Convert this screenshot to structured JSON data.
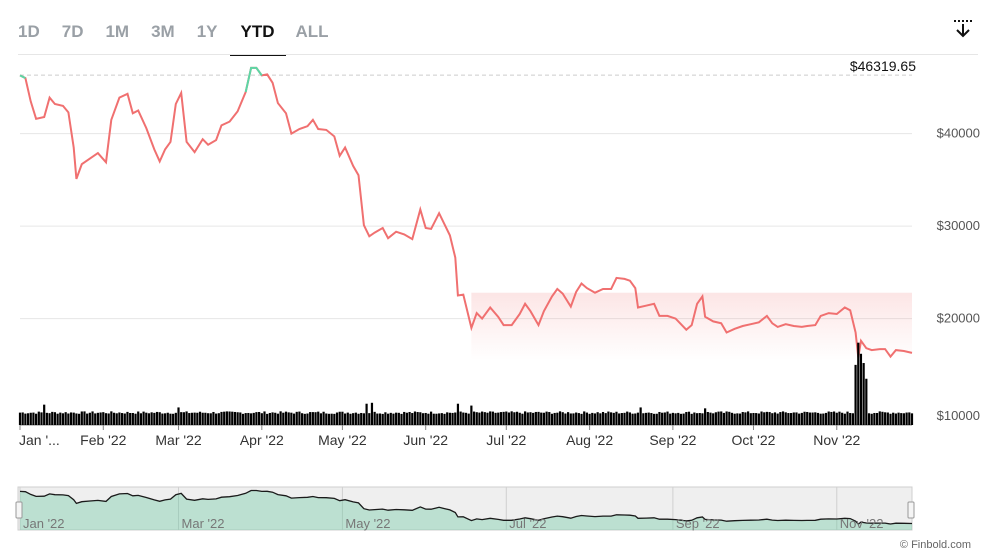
{
  "toolbar": {
    "tabs": [
      {
        "label": "1D"
      },
      {
        "label": "7D"
      },
      {
        "label": "1M"
      },
      {
        "label": "3M"
      },
      {
        "label": "1Y"
      },
      {
        "label": "YTD"
      },
      {
        "label": "ALL"
      }
    ],
    "active_tab": "YTD",
    "download_icon": "download-arrow-icon"
  },
  "credit": "© Finbold.com",
  "colors": {
    "line_down": "#f07070",
    "line_up": "#5dd6a5",
    "volume": "#000000",
    "navigator_line": "#1a1a1a",
    "navigator_fill": "#5fc79c"
  },
  "chart_data": {
    "type": "line",
    "title": "",
    "xlabel": "",
    "ylabel": "",
    "ylim": [
      8500,
      48500
    ],
    "yticks": [
      10000,
      20000,
      30000,
      40000
    ],
    "ytick_labels": [
      "$10000",
      "$20000",
      "$30000",
      "$40000"
    ],
    "xticks": [
      "2022-01-01",
      "2022-02-01",
      "2022-03-01",
      "2022-04-01",
      "2022-05-01",
      "2022-06-01",
      "2022-07-01",
      "2022-08-01",
      "2022-09-01",
      "2022-10-01",
      "2022-11-01"
    ],
    "xtick_labels": [
      "Jan '...",
      "Feb '22",
      "Mar '22",
      "Apr '22",
      "May '22",
      "Jun '22",
      "Jul '22",
      "Aug '22",
      "Sep '22",
      "Oct '22",
      "Nov '22"
    ],
    "x_range": [
      "2022-01-01",
      "2022-11-29"
    ],
    "grid": true,
    "max_annotation": {
      "label": "$46319.65",
      "value": 46319.65
    },
    "series": [
      {
        "points": [
          [
            "2022-01-01",
            46300
          ],
          [
            "2022-01-03",
            46000
          ],
          [
            "2022-01-05",
            43500
          ],
          [
            "2022-01-07",
            41600
          ],
          [
            "2022-01-10",
            41800
          ],
          [
            "2022-01-12",
            43900
          ],
          [
            "2022-01-14",
            43200
          ],
          [
            "2022-01-17",
            43000
          ],
          [
            "2022-01-19",
            42300
          ],
          [
            "2022-01-21",
            38500
          ],
          [
            "2022-01-22",
            35100
          ],
          [
            "2022-01-24",
            36700
          ],
          [
            "2022-01-27",
            37300
          ],
          [
            "2022-01-30",
            37900
          ],
          [
            "2022-02-02",
            36900
          ],
          [
            "2022-02-04",
            41500
          ],
          [
            "2022-02-07",
            43900
          ],
          [
            "2022-02-10",
            44300
          ],
          [
            "2022-02-12",
            42200
          ],
          [
            "2022-02-14",
            42500
          ],
          [
            "2022-02-17",
            40600
          ],
          [
            "2022-02-20",
            38300
          ],
          [
            "2022-02-22",
            37000
          ],
          [
            "2022-02-24",
            38300
          ],
          [
            "2022-02-26",
            39100
          ],
          [
            "2022-02-28",
            43200
          ],
          [
            "2022-03-02",
            44400
          ],
          [
            "2022-03-04",
            39100
          ],
          [
            "2022-03-07",
            38000
          ],
          [
            "2022-03-10",
            39400
          ],
          [
            "2022-03-12",
            38800
          ],
          [
            "2022-03-15",
            39300
          ],
          [
            "2022-03-17",
            40900
          ],
          [
            "2022-03-20",
            41300
          ],
          [
            "2022-03-23",
            42400
          ],
          [
            "2022-03-26",
            44500
          ],
          [
            "2022-03-28",
            47100
          ],
          [
            "2022-03-30",
            47100
          ],
          [
            "2022-04-01",
            46300
          ],
          [
            "2022-04-03",
            46400
          ],
          [
            "2022-04-05",
            45500
          ],
          [
            "2022-04-07",
            43300
          ],
          [
            "2022-04-10",
            42200
          ],
          [
            "2022-04-12",
            40000
          ],
          [
            "2022-04-15",
            40500
          ],
          [
            "2022-04-18",
            40800
          ],
          [
            "2022-04-20",
            41500
          ],
          [
            "2022-04-22",
            40500
          ],
          [
            "2022-04-25",
            40400
          ],
          [
            "2022-04-28",
            39700
          ],
          [
            "2022-04-30",
            37600
          ],
          [
            "2022-05-02",
            38500
          ],
          [
            "2022-05-05",
            36500
          ],
          [
            "2022-05-07",
            35500
          ],
          [
            "2022-05-09",
            30100
          ],
          [
            "2022-05-11",
            28900
          ],
          [
            "2022-05-13",
            29300
          ],
          [
            "2022-05-16",
            29800
          ],
          [
            "2022-05-18",
            28700
          ],
          [
            "2022-05-21",
            29400
          ],
          [
            "2022-05-24",
            29100
          ],
          [
            "2022-05-27",
            28600
          ],
          [
            "2022-05-30",
            31800
          ],
          [
            "2022-06-01",
            29800
          ],
          [
            "2022-06-03",
            29700
          ],
          [
            "2022-06-06",
            31400
          ],
          [
            "2022-06-08",
            30200
          ],
          [
            "2022-06-10",
            29000
          ],
          [
            "2022-06-12",
            26600
          ],
          [
            "2022-06-13",
            22500
          ],
          [
            "2022-06-15",
            22600
          ],
          [
            "2022-06-18",
            19000
          ],
          [
            "2022-06-20",
            20600
          ],
          [
            "2022-06-22",
            20000
          ],
          [
            "2022-06-25",
            21200
          ],
          [
            "2022-06-28",
            20200
          ],
          [
            "2022-06-30",
            19300
          ],
          [
            "2022-07-03",
            19300
          ],
          [
            "2022-07-06",
            20500
          ],
          [
            "2022-07-08",
            21600
          ],
          [
            "2022-07-10",
            20800
          ],
          [
            "2022-07-13",
            19300
          ],
          [
            "2022-07-15",
            20800
          ],
          [
            "2022-07-18",
            22400
          ],
          [
            "2022-07-20",
            23200
          ],
          [
            "2022-07-22",
            22700
          ],
          [
            "2022-07-25",
            21300
          ],
          [
            "2022-07-27",
            22900
          ],
          [
            "2022-07-29",
            23800
          ],
          [
            "2022-07-31",
            23300
          ],
          [
            "2022-08-03",
            22800
          ],
          [
            "2022-08-06",
            23200
          ],
          [
            "2022-08-09",
            23200
          ],
          [
            "2022-08-11",
            24400
          ],
          [
            "2022-08-14",
            24300
          ],
          [
            "2022-08-16",
            24100
          ],
          [
            "2022-08-18",
            23300
          ],
          [
            "2022-08-19",
            21200
          ],
          [
            "2022-08-22",
            21400
          ],
          [
            "2022-08-25",
            21600
          ],
          [
            "2022-08-27",
            20300
          ],
          [
            "2022-08-30",
            20300
          ],
          [
            "2022-09-02",
            20000
          ],
          [
            "2022-09-06",
            18800
          ],
          [
            "2022-09-08",
            19300
          ],
          [
            "2022-09-10",
            21600
          ],
          [
            "2022-09-12",
            22400
          ],
          [
            "2022-09-13",
            20200
          ],
          [
            "2022-09-16",
            19700
          ],
          [
            "2022-09-19",
            19500
          ],
          [
            "2022-09-21",
            18500
          ],
          [
            "2022-09-24",
            18900
          ],
          [
            "2022-09-27",
            19200
          ],
          [
            "2022-09-30",
            19400
          ],
          [
            "2022-10-03",
            19600
          ],
          [
            "2022-10-06",
            20300
          ],
          [
            "2022-10-08",
            19500
          ],
          [
            "2022-10-10",
            19100
          ],
          [
            "2022-10-13",
            19400
          ],
          [
            "2022-10-16",
            19200
          ],
          [
            "2022-10-19",
            19100
          ],
          [
            "2022-10-21",
            19200
          ],
          [
            "2022-10-24",
            19300
          ],
          [
            "2022-10-26",
            20300
          ],
          [
            "2022-10-29",
            20600
          ],
          [
            "2022-11-01",
            20500
          ],
          [
            "2022-11-04",
            21200
          ],
          [
            "2022-11-06",
            20900
          ],
          [
            "2022-11-08",
            18500
          ],
          [
            "2022-11-09",
            15800
          ],
          [
            "2022-11-10",
            17600
          ],
          [
            "2022-11-12",
            16800
          ],
          [
            "2022-11-14",
            16600
          ],
          [
            "2022-11-17",
            16700
          ],
          [
            "2022-11-19",
            16700
          ],
          [
            "2022-11-21",
            15900
          ],
          [
            "2022-11-23",
            16600
          ],
          [
            "2022-11-26",
            16500
          ],
          [
            "2022-11-29",
            16300
          ]
        ]
      }
    ],
    "volume": {
      "baseline": 9700,
      "spikes": [
        [
          "2022-01-10",
          10700
        ],
        [
          "2022-03-01",
          10400
        ],
        [
          "2022-05-10",
          10800
        ],
        [
          "2022-05-12",
          10900
        ],
        [
          "2022-06-13",
          10800
        ],
        [
          "2022-06-18",
          10600
        ],
        [
          "2022-08-20",
          10400
        ],
        [
          "2022-09-13",
          10300
        ],
        [
          "2022-11-08",
          15000
        ],
        [
          "2022-11-09",
          17400
        ],
        [
          "2022-11-10",
          16200
        ],
        [
          "2022-11-11",
          15200
        ],
        [
          "2022-11-12",
          13500
        ]
      ]
    },
    "navigator": {
      "xtick_labels": [
        "Jan '22",
        "Mar '22",
        "May '22",
        "Jul '22",
        "Sep '22",
        "Nov '22"
      ],
      "xticks": [
        "2022-01-01",
        "2022-03-01",
        "2022-05-01",
        "2022-07-01",
        "2022-09-01",
        "2022-11-01"
      ]
    }
  }
}
